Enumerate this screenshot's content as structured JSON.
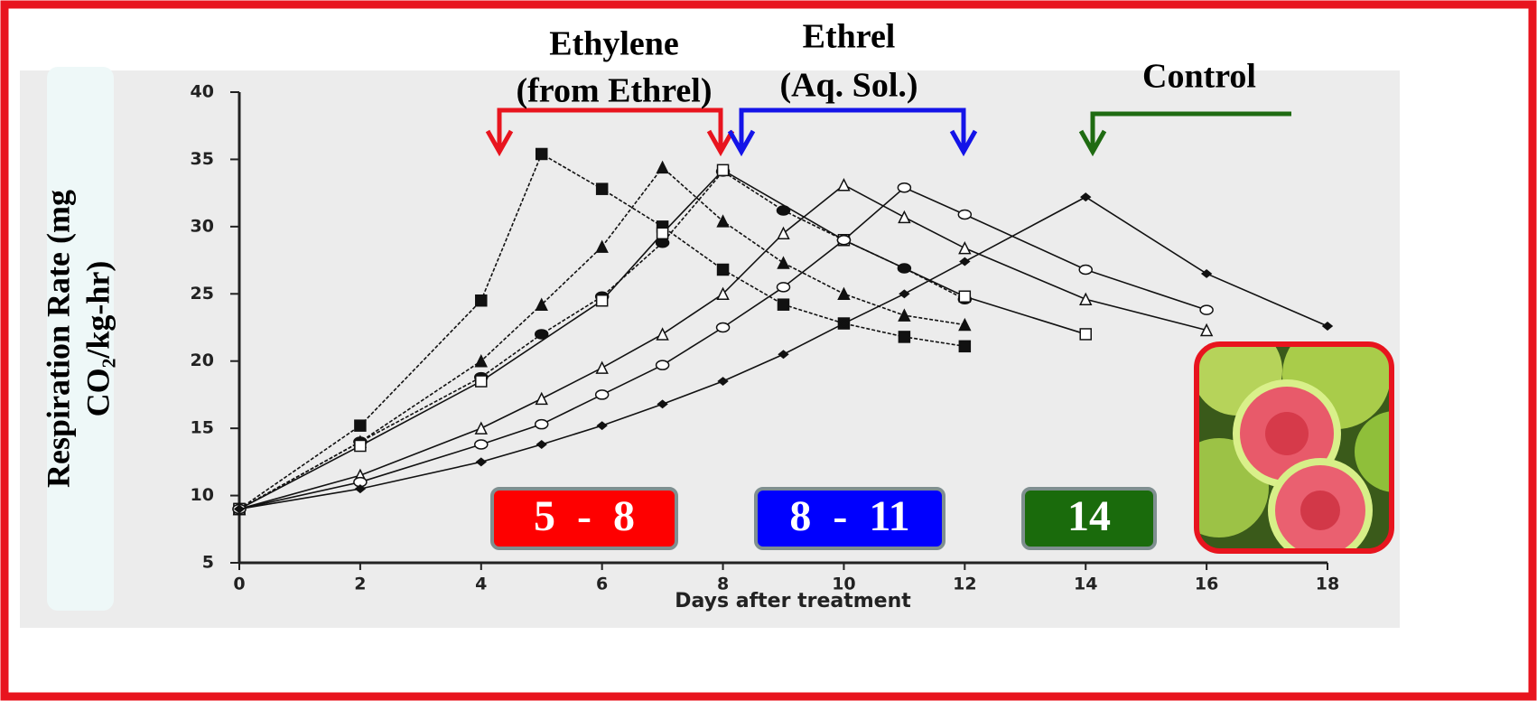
{
  "chart_data": {
    "type": "line",
    "ylabel": [
      "Respiration Rate (mg",
      "CO₂/kg-hr)"
    ],
    "xlabel": "Days after treatment",
    "annotations": [
      [
        "Ethylene",
        "(from Ethrel)"
      ],
      [
        "Ethrel",
        "(Aq. Sol.)"
      ],
      [
        "Control"
      ]
    ],
    "ranges": [
      "5  -  8",
      "8  -  11",
      "14"
    ],
    "xlim": [
      0,
      18
    ],
    "ylim": [
      5,
      40
    ],
    "xticks": [
      0,
      2,
      4,
      6,
      8,
      10,
      12,
      14,
      16,
      18
    ],
    "yticks": [
      5,
      10,
      15,
      20,
      25,
      30,
      35,
      40
    ],
    "grid": false,
    "color": "#111111",
    "series": [
      {
        "marker": "square",
        "filled": true,
        "x": [
          0,
          2,
          4,
          5,
          6,
          7,
          8,
          9,
          10,
          11,
          12
        ],
        "values": [
          9,
          15.2,
          24.5,
          35.4,
          32.8,
          30,
          26.8,
          24.2,
          22.8,
          21.8,
          21.1
        ]
      },
      {
        "marker": "triangle",
        "filled": true,
        "x": [
          0,
          2,
          4,
          5,
          6,
          7,
          8,
          9,
          10,
          11,
          12
        ],
        "values": [
          9,
          14,
          20,
          24.2,
          28.5,
          34.4,
          30.4,
          27.3,
          25,
          23.4,
          22.7
        ]
      },
      {
        "marker": "circle",
        "filled": true,
        "x": [
          0,
          2,
          4,
          5,
          6,
          7,
          8,
          9,
          10,
          11,
          12
        ],
        "values": [
          9,
          14,
          18.8,
          22,
          24.8,
          28.8,
          34.1,
          31.2,
          29,
          26.9,
          24.6
        ]
      },
      {
        "marker": "square",
        "filled": false,
        "x": [
          0,
          2,
          4,
          6,
          7,
          8,
          10,
          12,
          14
        ],
        "values": [
          9,
          13.7,
          18.5,
          24.5,
          29.5,
          34.2,
          29,
          24.8,
          22
        ]
      },
      {
        "marker": "triangle",
        "filled": false,
        "x": [
          0,
          2,
          4,
          5,
          6,
          7,
          8,
          9,
          10,
          11,
          12,
          14,
          16
        ],
        "values": [
          9,
          11.5,
          15,
          17.2,
          19.5,
          22,
          25,
          29.5,
          33.1,
          30.7,
          28.4,
          24.6,
          22.3
        ]
      },
      {
        "marker": "circle",
        "filled": false,
        "x": [
          0,
          2,
          4,
          5,
          6,
          7,
          8,
          9,
          10,
          11,
          12,
          14,
          16
        ],
        "values": [
          9,
          11,
          13.8,
          15.3,
          17.5,
          19.7,
          22.5,
          25.5,
          29,
          32.9,
          30.9,
          26.8,
          23.8
        ]
      },
      {
        "marker": "diamond",
        "filled": true,
        "x": [
          0,
          2,
          4,
          5,
          6,
          7,
          8,
          9,
          10,
          11,
          12,
          14,
          16,
          18
        ],
        "values": [
          9,
          10.5,
          12.5,
          13.8,
          15.2,
          16.8,
          18.5,
          20.5,
          22.8,
          25,
          27.4,
          32.2,
          26.5,
          22.6
        ]
      }
    ]
  }
}
